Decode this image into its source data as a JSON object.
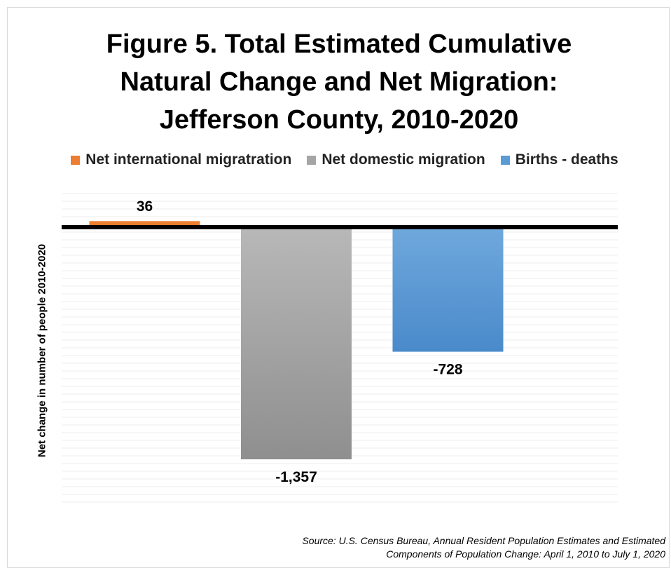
{
  "title_lines": [
    "Figure 5. Total Estimated Cumulative",
    "Natural Change and Net Migration:",
    "Jefferson County, 2010-2020"
  ],
  "ylabel": "Net change in number of people 2010-2020",
  "source_lines": [
    "Source: U.S. Census Bureau, Annual Resident Population Estimates and Estimated",
    "Components of Population Change: April 1, 2010 to July 1, 2020"
  ],
  "chart_data": {
    "type": "bar",
    "title": "Figure 5. Total Estimated Cumulative Natural Change and Net Migration: Jefferson County, 2010-2020",
    "xlabel": "",
    "ylabel": "Net change in number of people 2010-2020",
    "ylim": [
      -1600,
      200
    ],
    "grid": true,
    "legend_position": "top",
    "series": [
      {
        "name": "Net international migratration",
        "value": 36,
        "label": "36",
        "color": "#ED7D31"
      },
      {
        "name": "Net domestic migration",
        "value": -1357,
        "label": "-1,357",
        "color": "#A5A5A5"
      },
      {
        "name": "Births  - deaths",
        "value": -728,
        "label": "-728",
        "color": "#5B9BD5"
      }
    ]
  }
}
